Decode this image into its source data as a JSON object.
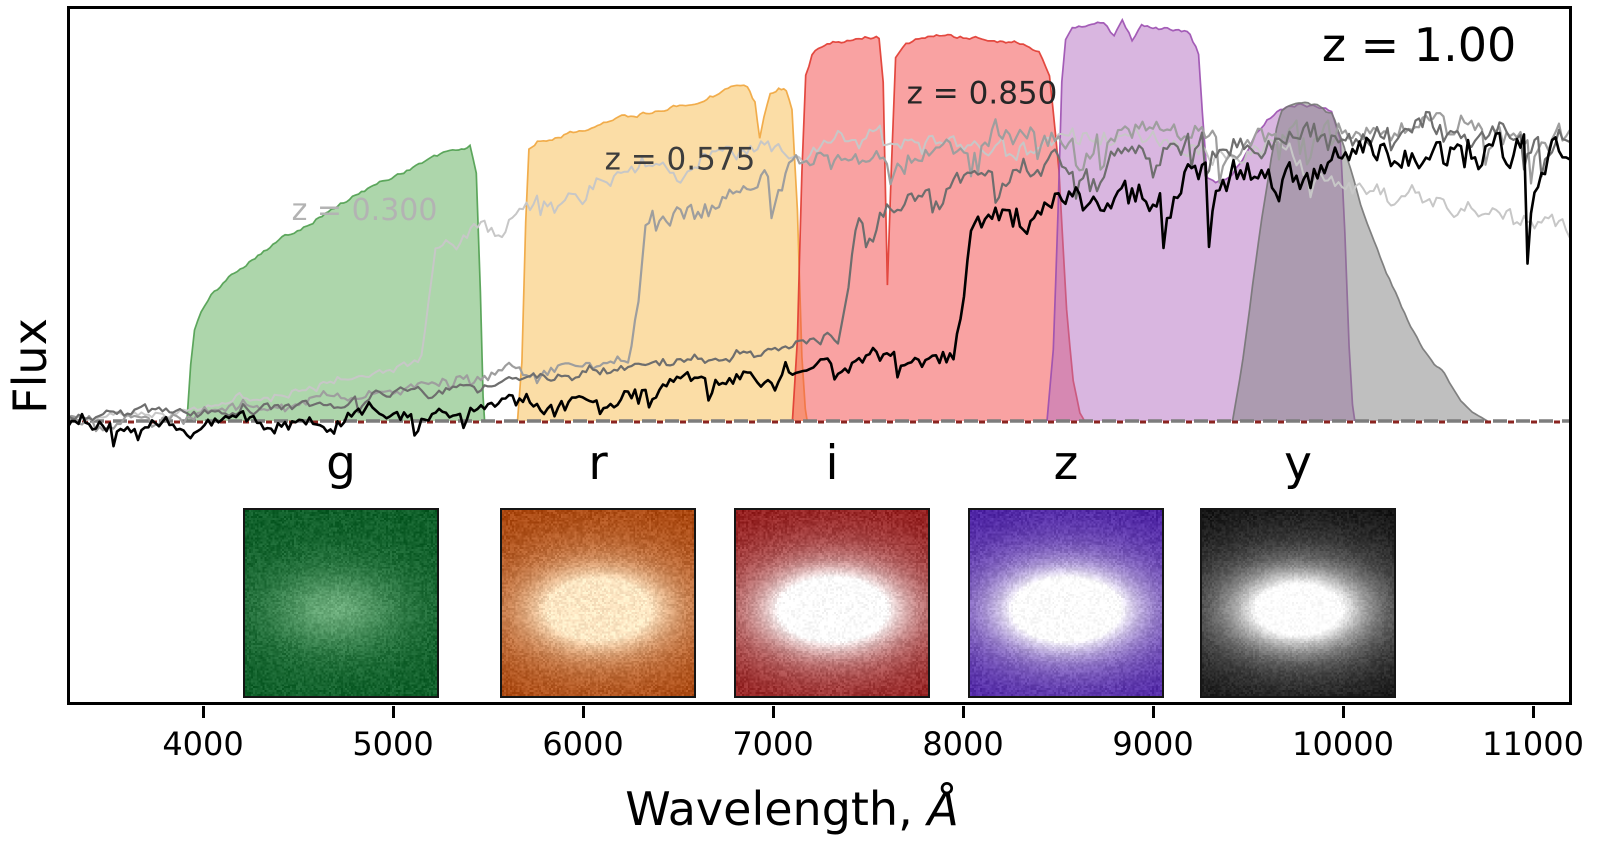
{
  "chart_data": {
    "type": "area",
    "description": "Galaxy spectra at several redshifts overlaid on grizy photometric filter transmission curves, with simulated galaxy image cutouts per band",
    "title_annotation": "z = 1.00",
    "xlabel": "Wavelength,",
    "xlabel_unit": "Å",
    "ylabel": "Flux",
    "x_ticks": [
      4000,
      5000,
      6000,
      7000,
      8000,
      9000,
      10000,
      11000
    ],
    "x_range": [
      3284,
      11205
    ],
    "flux_fraction_range": [
      0,
      1
    ],
    "grid": false,
    "zero_line": {
      "gray": "#7d7d7d",
      "red": "#8b2420"
    },
    "filters": [
      {
        "band": "g",
        "color": "#5bad57",
        "edge": "#4f9e4f",
        "opacity": 0.5,
        "points": [
          [
            3915,
            0
          ],
          [
            3935,
            0.14
          ],
          [
            3955,
            0.225
          ],
          [
            3990,
            0.27
          ],
          [
            4060,
            0.32
          ],
          [
            4180,
            0.375
          ],
          [
            4320,
            0.425
          ],
          [
            4480,
            0.47
          ],
          [
            4660,
            0.52
          ],
          [
            4850,
            0.57
          ],
          [
            5040,
            0.615
          ],
          [
            5200,
            0.65
          ],
          [
            5330,
            0.67
          ],
          [
            5405,
            0.68
          ],
          [
            5438,
            0.61
          ],
          [
            5460,
            0.32
          ],
          [
            5474,
            0.06
          ],
          [
            5482,
            0
          ]
        ]
      },
      {
        "band": "r",
        "color": "#f7bb4d",
        "edge": "#efa53d",
        "opacity": 0.5,
        "points": [
          [
            5655,
            0
          ],
          [
            5678,
            0.15
          ],
          [
            5698,
            0.5
          ],
          [
            5715,
            0.675
          ],
          [
            5760,
            0.695
          ],
          [
            5900,
            0.71
          ],
          [
            6060,
            0.73
          ],
          [
            6220,
            0.75
          ],
          [
            6380,
            0.768
          ],
          [
            6540,
            0.787
          ],
          [
            6700,
            0.81
          ],
          [
            6810,
            0.838
          ],
          [
            6865,
            0.833
          ],
          [
            6905,
            0.79
          ],
          [
            6930,
            0.7
          ],
          [
            6952,
            0.755
          ],
          [
            6985,
            0.81
          ],
          [
            7030,
            0.828
          ],
          [
            7070,
            0.818
          ],
          [
            7100,
            0.77
          ],
          [
            7128,
            0.52
          ],
          [
            7152,
            0.16
          ],
          [
            7170,
            0.03
          ],
          [
            7180,
            0
          ]
        ]
      },
      {
        "band": "i",
        "color": "#f34545",
        "edge": "#e03a30",
        "opacity": 0.5,
        "points": [
          [
            7102,
            0
          ],
          [
            7128,
            0.2
          ],
          [
            7152,
            0.62
          ],
          [
            7172,
            0.855
          ],
          [
            7205,
            0.905
          ],
          [
            7255,
            0.925
          ],
          [
            7330,
            0.94
          ],
          [
            7420,
            0.947
          ],
          [
            7500,
            0.952
          ],
          [
            7558,
            0.95
          ],
          [
            7580,
            0.84
          ],
          [
            7602,
            0.34
          ],
          [
            7622,
            0.62
          ],
          [
            7645,
            0.9
          ],
          [
            7700,
            0.935
          ],
          [
            7800,
            0.95
          ],
          [
            7920,
            0.953
          ],
          [
            8050,
            0.948
          ],
          [
            8180,
            0.944
          ],
          [
            8300,
            0.938
          ],
          [
            8400,
            0.92
          ],
          [
            8455,
            0.86
          ],
          [
            8505,
            0.62
          ],
          [
            8545,
            0.28
          ],
          [
            8580,
            0.1
          ],
          [
            8615,
            0.02
          ],
          [
            8640,
            0
          ]
        ]
      },
      {
        "band": "z",
        "color": "#b36dc1",
        "edge": "#9b4fb0",
        "opacity": 0.5,
        "points": [
          [
            8442,
            0
          ],
          [
            8475,
            0.18
          ],
          [
            8500,
            0.52
          ],
          [
            8520,
            0.84
          ],
          [
            8540,
            0.945
          ],
          [
            8575,
            0.968
          ],
          [
            8660,
            0.98
          ],
          [
            8740,
            0.985
          ],
          [
            8795,
            0.952
          ],
          [
            8838,
            0.988
          ],
          [
            8890,
            0.942
          ],
          [
            8940,
            0.982
          ],
          [
            9030,
            0.972
          ],
          [
            9120,
            0.968
          ],
          [
            9195,
            0.958
          ],
          [
            9240,
            0.91
          ],
          [
            9260,
            0.76
          ],
          [
            9285,
            0.6
          ],
          [
            9330,
            0.582
          ],
          [
            9400,
            0.598
          ],
          [
            9470,
            0.645
          ],
          [
            9540,
            0.706
          ],
          [
            9600,
            0.748
          ],
          [
            9670,
            0.775
          ],
          [
            9760,
            0.783
          ],
          [
            9860,
            0.778
          ],
          [
            9940,
            0.762
          ],
          [
            9985,
            0.7
          ],
          [
            10010,
            0.46
          ],
          [
            10032,
            0.18
          ],
          [
            10050,
            0.04
          ],
          [
            10062,
            0
          ]
        ]
      },
      {
        "band": "y",
        "color": "#7f7f7f",
        "edge": "#767676",
        "opacity": 0.5,
        "points": [
          [
            9418,
            0
          ],
          [
            9455,
            0.1
          ],
          [
            9492,
            0.22
          ],
          [
            9524,
            0.34
          ],
          [
            9556,
            0.45
          ],
          [
            9590,
            0.555
          ],
          [
            9622,
            0.655
          ],
          [
            9650,
            0.725
          ],
          [
            9678,
            0.77
          ],
          [
            9720,
            0.785
          ],
          [
            9800,
            0.782
          ],
          [
            9880,
            0.775
          ],
          [
            9940,
            0.76
          ],
          [
            9990,
            0.7
          ],
          [
            10040,
            0.62
          ],
          [
            10110,
            0.512
          ],
          [
            10180,
            0.43
          ],
          [
            10260,
            0.335
          ],
          [
            10340,
            0.25
          ],
          [
            10420,
            0.175
          ],
          [
            10480,
            0.135
          ],
          [
            10520,
            0.118
          ],
          [
            10560,
            0.095
          ],
          [
            10620,
            0.05
          ],
          [
            10680,
            0.022
          ],
          [
            10760,
            0
          ]
        ]
      }
    ],
    "spectra": [
      {
        "label": "z = 0.300",
        "redshift": 0.3,
        "color": "#c7c7c7",
        "line_width": 2.0,
        "break_wavelength": 5200,
        "noise": 0.034,
        "dip": 0.35,
        "seed": 11,
        "profile": [
          [
            3284,
            0.01
          ],
          [
            3800,
            0.02
          ],
          [
            4200,
            0.05
          ],
          [
            4700,
            0.1
          ],
          [
            5150,
            0.16
          ],
          [
            5230,
            0.44
          ],
          [
            5600,
            0.52
          ],
          [
            6100,
            0.6
          ],
          [
            6700,
            0.66
          ],
          [
            7500,
            0.69
          ],
          [
            8200,
            0.7
          ],
          [
            9000,
            0.69
          ],
          [
            9600,
            0.66
          ],
          [
            10300,
            0.56
          ],
          [
            11205,
            0.48
          ]
        ],
        "annotation": {
          "text": "z = 0.300",
          "wavelength": 4850,
          "flux": 0.52,
          "font_size": 30,
          "color": "#b3b3b3"
        }
      },
      {
        "label": "z = 0.575",
        "redshift": 0.575,
        "color": "#9e9e9e",
        "line_width": 2.2,
        "break_wavelength": 6300,
        "noise": 0.044,
        "dip": 0.8,
        "seed": 22,
        "profile": [
          [
            3284,
            0.01
          ],
          [
            4200,
            0.03
          ],
          [
            5000,
            0.08
          ],
          [
            5700,
            0.12
          ],
          [
            6250,
            0.16
          ],
          [
            6330,
            0.47
          ],
          [
            6700,
            0.55
          ],
          [
            7100,
            0.62
          ],
          [
            7600,
            0.66
          ],
          [
            8200,
            0.7
          ],
          [
            9000,
            0.71
          ],
          [
            10000,
            0.72
          ],
          [
            11205,
            0.72
          ]
        ],
        "annotation": {
          "text": "z = 0.575",
          "wavelength": 6510,
          "flux": 0.645,
          "font_size": 31,
          "color": "#3d3d3d"
        }
      },
      {
        "label": "z = 0.850",
        "redshift": 0.85,
        "color": "#6e6e6e",
        "line_width": 2.2,
        "break_wavelength": 7400,
        "noise": 0.042,
        "dip": 0.8,
        "seed": 33,
        "profile": [
          [
            3284,
            0.01
          ],
          [
            4500,
            0.04
          ],
          [
            5500,
            0.09
          ],
          [
            6500,
            0.15
          ],
          [
            7350,
            0.21
          ],
          [
            7430,
            0.48
          ],
          [
            7800,
            0.55
          ],
          [
            8300,
            0.62
          ],
          [
            8900,
            0.67
          ],
          [
            9600,
            0.7
          ],
          [
            10400,
            0.72
          ],
          [
            11205,
            0.71
          ]
        ],
        "annotation": {
          "text": "z = 0.850",
          "wavelength": 8100,
          "flux": 0.81,
          "font_size": 31,
          "color": "#262626"
        }
      },
      {
        "label": "z = 1.00",
        "redshift": 1.0,
        "color": "#000000",
        "line_width": 2.6,
        "break_wavelength": 8000,
        "noise": 0.06,
        "dip": 1.4,
        "seed": 44,
        "profile": [
          [
            3284,
            -0.015
          ],
          [
            4500,
            -0.005
          ],
          [
            5500,
            0.03
          ],
          [
            6500,
            0.09
          ],
          [
            7300,
            0.13
          ],
          [
            7950,
            0.17
          ],
          [
            8030,
            0.47
          ],
          [
            8500,
            0.52
          ],
          [
            9000,
            0.58
          ],
          [
            9700,
            0.64
          ],
          [
            10400,
            0.66
          ],
          [
            11205,
            0.67
          ]
        ],
        "annotation": {
          "text": "z = 1.00",
          "wavelength": 10400,
          "flux": 0.93,
          "font_size": 46,
          "color": "#000000"
        }
      }
    ],
    "cutouts": [
      {
        "band": "g",
        "bg": "#0b5c26",
        "blob": "#a9e0b1",
        "amp": 0.42,
        "noise": 30
      },
      {
        "band": "r",
        "bg": "#a63f06",
        "blob": "#ffe7c4",
        "amp": 1.25,
        "noise": 34
      },
      {
        "band": "i",
        "bg": "#8e1212",
        "blob": "#ffffff",
        "amp": 1.3,
        "noise": 34
      },
      {
        "band": "z",
        "bg": "#44189f",
        "blob": "#ffffff",
        "amp": 1.3,
        "noise": 30
      },
      {
        "band": "y",
        "bg": "#0c0c0c",
        "blob": "#ffffff",
        "amp": 1.05,
        "noise": 24
      }
    ]
  }
}
